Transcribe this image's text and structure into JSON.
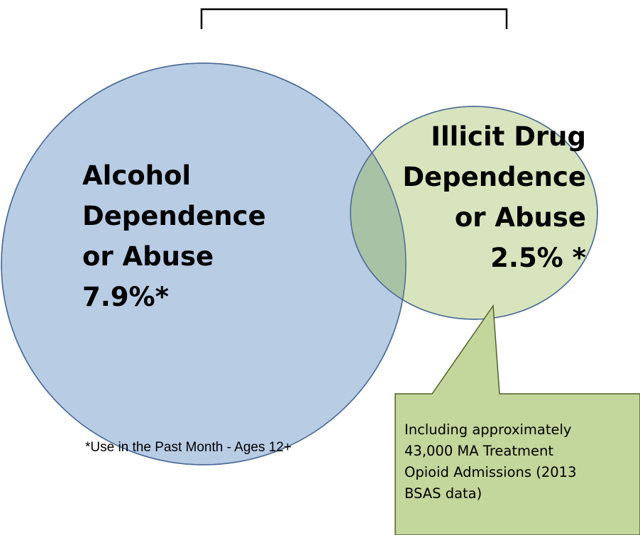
{
  "alcohol": {
    "line1": "Alcohol",
    "line2": "Dependence",
    "line3": "or Abuse",
    "line4": "7.9%*",
    "fill_color": "#b8cce4",
    "stroke_color": "#4a6a95"
  },
  "illicit_drug": {
    "line1": "Illicit Drug",
    "line2": "Dependence",
    "line3": "or Abuse",
    "line4": "2.5% *",
    "fill_color": "#d7e4bd",
    "stroke_color": "#4a6a95"
  },
  "overlap_color": "#a8c2a5",
  "footnote": "*Use in the Past Month - Ages 12+",
  "callout": {
    "line1": "Including approximately",
    "line2": "43,000 MA Treatment",
    "line3": "Opioid Admissions (2013",
    "line4": "BSAS data)",
    "fill_color": "#c3d69b",
    "stroke_color": "#4f6228"
  },
  "bracket_color": "#000000"
}
